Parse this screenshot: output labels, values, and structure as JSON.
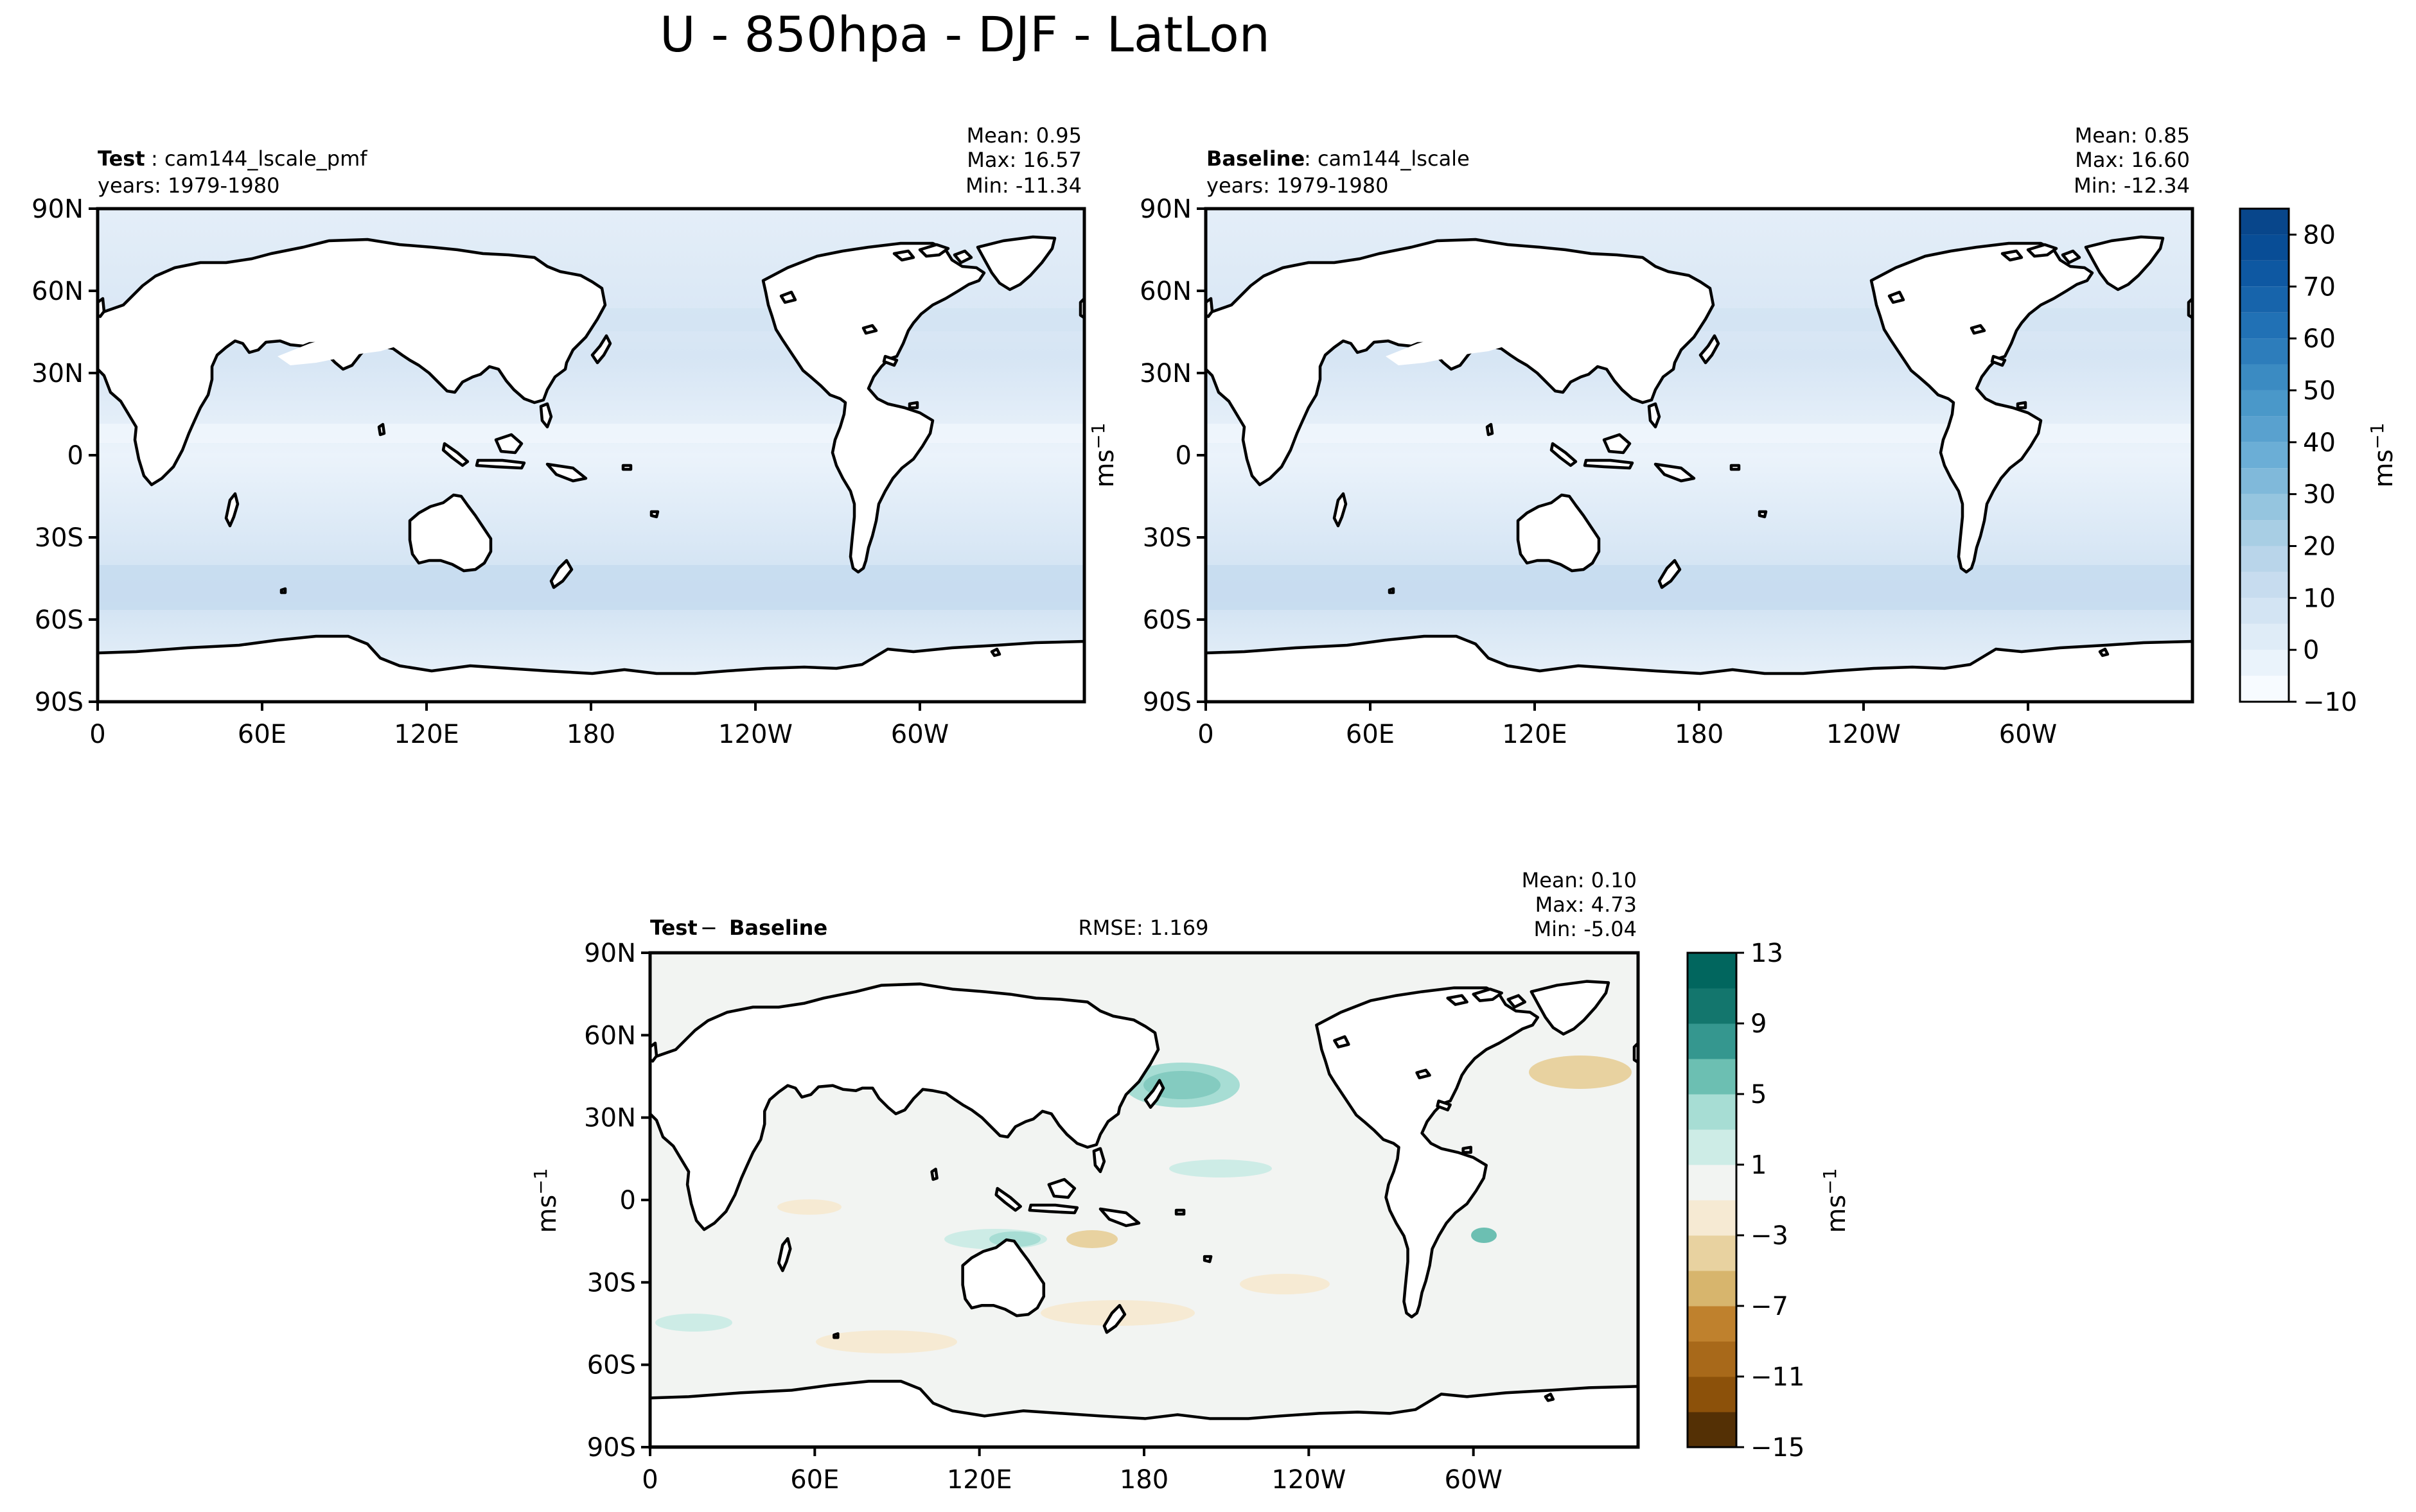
{
  "figure": {
    "suptitle": "U - 850hpa - DJF - LatLon"
  },
  "lat_ticks": [
    "90N",
    "60N",
    "30N",
    "0",
    "30S",
    "60S",
    "90S"
  ],
  "lon_ticks": [
    "0",
    "60E",
    "120E",
    "180",
    "120W",
    "60W"
  ],
  "panels": {
    "test": {
      "label_bold": "Test",
      "label_rest": ": cam144_lscale_pmf",
      "years": "years: 1979-1980",
      "mean": "Mean:  0.95",
      "max": "Max: 16.57",
      "min": "Min: -11.34",
      "ylabel": "ms",
      "ylabel_sup": "−1"
    },
    "baseline": {
      "label_bold": "Baseline",
      "label_rest": ": cam144_lscale",
      "years": "years: 1979-1980",
      "mean": "Mean:  0.85",
      "max": "Max: 16.60",
      "min": "Min: -12.34",
      "cbar_label": "ms",
      "cbar_label_sup": "−1"
    },
    "diff": {
      "label_a": "Test",
      "label_op": " − ",
      "label_b": "Baseline",
      "rmse": "RMSE: 1.169",
      "mean": "Mean:  0.10",
      "max": "Max:  4.73",
      "min": "Min: -5.04",
      "ylabel": "ms",
      "ylabel_sup": "−1",
      "cbar_label": "ms",
      "cbar_label_sup": "−1"
    }
  },
  "chart_data": [
    {
      "type": "heatmap",
      "panel": "test",
      "title": "Test: cam144_lscale_pmf",
      "subtitle": "years: 1979-1980",
      "variable": "U 850hPa DJF",
      "xlabel": "",
      "ylabel": "ms⁻¹",
      "xlim": [
        0,
        360
      ],
      "ylim": [
        -90,
        90
      ],
      "x_ticks": [
        0,
        60,
        120,
        180,
        240,
        300
      ],
      "y_ticks": [
        90,
        60,
        30,
        0,
        -30,
        -60,
        -90
      ],
      "colormap": "Blues",
      "levels": [
        -10,
        -5,
        0,
        5,
        10,
        15,
        20,
        25,
        30,
        35,
        40,
        45,
        50,
        55,
        60,
        65,
        70,
        75,
        80,
        85
      ],
      "stats": {
        "mean": 0.95,
        "max": 16.57,
        "min": -11.34
      },
      "zonal_mean_profile": {
        "lat": [
          80,
          60,
          45,
          30,
          15,
          0,
          -15,
          -30,
          -45,
          -50,
          -60,
          -75
        ],
        "u": [
          1,
          4,
          7,
          3,
          -3,
          -5,
          -4,
          1,
          9,
          11,
          5,
          1
        ]
      }
    },
    {
      "type": "heatmap",
      "panel": "baseline",
      "title": "Baseline: cam144_lscale",
      "subtitle": "years: 1979-1980",
      "variable": "U 850hPa DJF",
      "xlim": [
        0,
        360
      ],
      "ylim": [
        -90,
        90
      ],
      "x_ticks": [
        0,
        60,
        120,
        180,
        240,
        300
      ],
      "y_ticks": [
        90,
        60,
        30,
        0,
        -30,
        -60,
        -90
      ],
      "colormap": "Blues",
      "levels": [
        -10,
        -5,
        0,
        5,
        10,
        15,
        20,
        25,
        30,
        35,
        40,
        45,
        50,
        55,
        60,
        65,
        70,
        75,
        80,
        85
      ],
      "colorbar_ticks": [
        -10,
        0,
        10,
        20,
        30,
        40,
        50,
        60,
        70,
        80
      ],
      "colorbar_label": "ms⁻¹",
      "stats": {
        "mean": 0.85,
        "max": 16.6,
        "min": -12.34
      },
      "zonal_mean_profile": {
        "lat": [
          80,
          60,
          45,
          30,
          15,
          0,
          -15,
          -30,
          -45,
          -50,
          -60,
          -75
        ],
        "u": [
          1,
          4,
          7,
          3,
          -3,
          -5,
          -4,
          1,
          9,
          11,
          5,
          1
        ]
      }
    },
    {
      "type": "heatmap",
      "panel": "diff",
      "title": "Test − Baseline",
      "annotation": "RMSE: 1.169",
      "xlim": [
        0,
        360
      ],
      "ylim": [
        -90,
        90
      ],
      "x_ticks": [
        0,
        60,
        120,
        180,
        240,
        300
      ],
      "y_ticks": [
        90,
        60,
        30,
        0,
        -30,
        -60,
        -90
      ],
      "colormap": "BrBG",
      "levels": [
        -15,
        -13,
        -11,
        -9,
        -7,
        -5,
        -3,
        -1,
        1,
        3,
        5,
        7,
        9,
        11,
        13
      ],
      "colorbar_ticks": [
        -15,
        -11,
        -7,
        -3,
        1,
        5,
        9,
        13
      ],
      "colorbar_label": "ms⁻¹",
      "stats": {
        "mean": 0.1,
        "max": 4.73,
        "min": -5.04,
        "rmse": 1.169
      }
    }
  ],
  "colors": {
    "blues": [
      "#f7fbff",
      "#eaf3fb",
      "#dfecf7",
      "#d3e4f3",
      "#c7dcef",
      "#b9d5ea",
      "#a8cee4",
      "#95c5df",
      "#80b9da",
      "#6baed6",
      "#59a1cf",
      "#4a98c9",
      "#3b8bc2",
      "#2d7dbb",
      "#2171b5",
      "#1764ab",
      "#0e58a2",
      "#084d96",
      "#08468b",
      "#08306b"
    ],
    "brbg_levels": [
      "#543005",
      "#8c510a",
      "#a8691a",
      "#bf812d",
      "#d7b56d",
      "#e8d2a0",
      "#f6ead3",
      "#f2f4f2",
      "#cdece6",
      "#a7ddd4",
      "#6cbfb2",
      "#35978f",
      "#13766d",
      "#01665e",
      "#003c30"
    ]
  }
}
